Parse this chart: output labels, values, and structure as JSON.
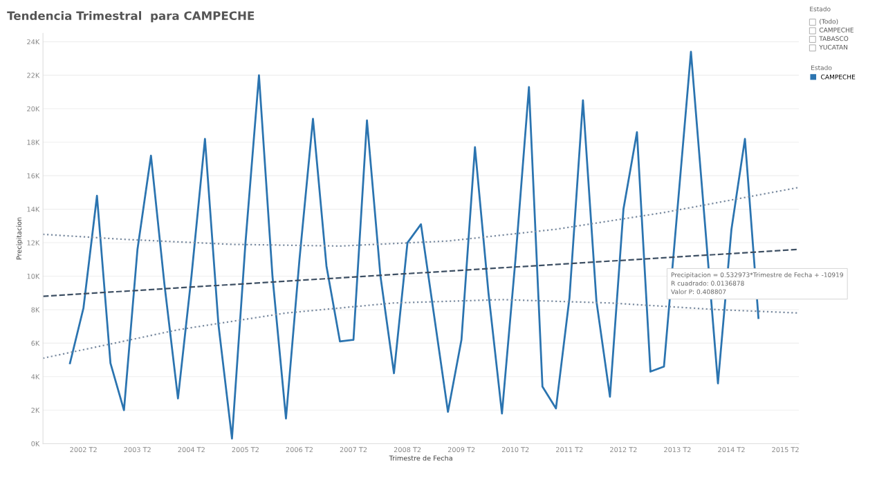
{
  "chart_data": {
    "type": "line",
    "title": "Tendencia Trimestral  para CAMPECHE",
    "xlabel": "Trimestre de Fecha",
    "ylabel": "Precipitacion",
    "legend_title": "Estado",
    "categories": [
      null,
      null,
      null,
      "2002 T2",
      null,
      null,
      null,
      "2003 T2",
      null,
      null,
      null,
      "2004 T2",
      null,
      null,
      null,
      "2005 T2",
      null,
      null,
      null,
      "2006 T2",
      null,
      null,
      null,
      "2007 T2",
      null,
      null,
      null,
      "2008 T2",
      null,
      null,
      null,
      "2009 T2",
      null,
      null,
      null,
      "2010 T2",
      null,
      null,
      null,
      "2011 T2",
      null,
      null,
      null,
      "2012 T2",
      null,
      null,
      null,
      "2013 T2",
      null,
      null,
      null,
      "2014 T2",
      null,
      null,
      null,
      "2015 T2",
      null
    ],
    "series": [
      {
        "name": "CAMPECHE",
        "color": "#2b74b0",
        "line_style": "solid",
        "values": [
          null,
          null,
          4800,
          8100,
          14800,
          4800,
          2000,
          11600,
          17200,
          9500,
          2700,
          10000,
          18200,
          7100,
          300,
          12000,
          22000,
          10000,
          1500,
          11000,
          19400,
          10600,
          6100,
          6200,
          19300,
          10000,
          4200,
          12000,
          13100,
          7500,
          1900,
          6200,
          17700,
          9000,
          1800,
          11000,
          21300,
          3400,
          2100,
          8700,
          20500,
          8500,
          2800,
          14000,
          18600,
          4300,
          4600,
          14000,
          23400,
          13500,
          3600,
          12800,
          18200,
          7500,
          null,
          null,
          null
        ]
      },
      {
        "type": "line",
        "color": "#3d4f63",
        "line_style": "dashed",
        "values": [
          8800,
          null,
          null,
          null,
          null,
          null,
          null,
          null,
          null,
          null,
          null,
          null,
          null,
          null,
          null,
          null,
          null,
          null,
          null,
          null,
          null,
          null,
          null,
          null,
          null,
          null,
          null,
          null,
          null,
          null,
          null,
          null,
          null,
          null,
          null,
          null,
          null,
          null,
          null,
          null,
          null,
          null,
          null,
          null,
          null,
          null,
          null,
          null,
          null,
          null,
          null,
          null,
          null,
          null,
          null,
          null,
          11600
        ]
      },
      {
        "type": "line",
        "color": "#7a8ba0",
        "line_style": "dotted",
        "values": [
          12500,
          null,
          null,
          null,
          null,
          null,
          12200,
          null,
          null,
          null,
          null,
          null,
          null,
          null,
          11900,
          null,
          null,
          null,
          null,
          null,
          null,
          null,
          11800,
          null,
          null,
          null,
          null,
          null,
          null,
          null,
          12100,
          null,
          null,
          null,
          null,
          null,
          null,
          null,
          12800,
          null,
          null,
          null,
          null,
          null,
          null,
          null,
          13800,
          null,
          null,
          null,
          null,
          null,
          null,
          null,
          null,
          null,
          15300
        ]
      },
      {
        "type": "line",
        "color": "#7a8ba0",
        "line_style": "dotted",
        "values": [
          5100,
          null,
          null,
          null,
          null,
          null,
          null,
          null,
          null,
          null,
          6800,
          null,
          null,
          null,
          null,
          null,
          null,
          null,
          7800,
          null,
          null,
          null,
          null,
          null,
          null,
          null,
          8400,
          null,
          null,
          null,
          null,
          null,
          null,
          null,
          8600,
          null,
          null,
          null,
          null,
          null,
          null,
          null,
          8400,
          null,
          null,
          null,
          null,
          null,
          null,
          null,
          8000,
          null,
          null,
          null,
          null,
          null,
          7800
        ]
      }
    ],
    "ylim": [
      0,
      24500
    ],
    "yticks": [
      {
        "value": 0,
        "label": "0K"
      },
      {
        "value": 2000,
        "label": "2K"
      },
      {
        "value": 4000,
        "label": "4K"
      },
      {
        "value": 6000,
        "label": "6K"
      },
      {
        "value": 8000,
        "label": "8K"
      },
      {
        "value": 10000,
        "label": "10K"
      },
      {
        "value": 12000,
        "label": "12K"
      },
      {
        "value": 14000,
        "label": "14K"
      },
      {
        "value": 16000,
        "label": "16K"
      },
      {
        "value": 18000,
        "label": "18K"
      },
      {
        "value": 20000,
        "label": "20K"
      },
      {
        "value": 22000,
        "label": "22K"
      },
      {
        "value": 24000,
        "label": "24K"
      }
    ],
    "grid": "y",
    "legend": "right",
    "annotations": [
      "Estado",
      "(Todo)",
      "CAMPECHE",
      "TABASCO",
      "YUCATAN",
      "Precipitacion = 0.532973*Trimestre de Fecha + -10919\nR cuadrado: 0.0136878\nValor P: 0.408807"
    ]
  }
}
